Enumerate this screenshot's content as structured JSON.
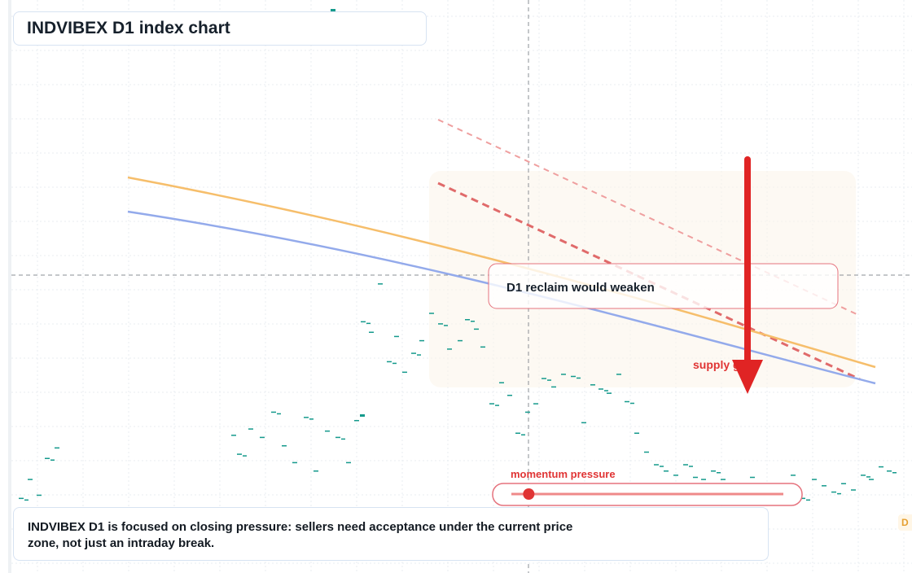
{
  "chart_data": {
    "type": "candlestick",
    "title": "INDVIBEX D1 index chart",
    "note": "INDVIBEX D1 is focused on closing pressure: sellers need acceptance under the current price zone, not just an intraday break.",
    "annotations": {
      "reclaim_label": "D1 reclaim would weaken",
      "supply_label": "supply g",
      "momentum_label": "momentum pressure",
      "axis_tag": "D",
      "momentum_level": 0.04
    },
    "colors": {
      "up": "#159a8c",
      "down": "#159a8c",
      "ma_fast": "#f6be6b",
      "ma_slow": "#93aaeb",
      "trend": "#e06666",
      "arrow": "#e02424",
      "accent_red": "#e03434"
    },
    "candles": [
      [
        26,
        22
      ],
      [
        37,
        40
      ],
      [
        48,
        25
      ],
      [
        58,
        60
      ],
      [
        70,
        70
      ],
      [
        287,
        82
      ],
      [
        294,
        64
      ],
      [
        308,
        88
      ],
      [
        322,
        80
      ],
      [
        336,
        104
      ],
      [
        349,
        72
      ],
      [
        362,
        56
      ],
      [
        376,
        99
      ],
      [
        388,
        48
      ],
      [
        402,
        86
      ],
      [
        415,
        80
      ],
      [
        428,
        56
      ],
      [
        438,
        96
      ],
      [
        446,
        190
      ],
      [
        456,
        180
      ],
      [
        467,
        226
      ],
      [
        478,
        152
      ],
      [
        487,
        176
      ],
      [
        497,
        142
      ],
      [
        508,
        160
      ],
      [
        518,
        172
      ],
      [
        530,
        198
      ],
      [
        541,
        188
      ],
      [
        552,
        164
      ],
      [
        565,
        172
      ],
      [
        574,
        192
      ],
      [
        585,
        183
      ],
      [
        593,
        166
      ],
      [
        604,
        112
      ],
      [
        616,
        132
      ],
      [
        626,
        120
      ],
      [
        636,
        84
      ],
      [
        648,
        104
      ],
      [
        658,
        112
      ],
      [
        668,
        136
      ],
      [
        680,
        128
      ],
      [
        692,
        140
      ],
      [
        704,
        138
      ],
      [
        717,
        94
      ],
      [
        728,
        130
      ],
      [
        738,
        126
      ],
      [
        748,
        122
      ],
      [
        760,
        140
      ],
      [
        770,
        114
      ],
      [
        782,
        84
      ],
      [
        794,
        66
      ],
      [
        806,
        54
      ],
      [
        818,
        48
      ],
      [
        830,
        44
      ],
      [
        842,
        54
      ],
      [
        854,
        42
      ],
      [
        864,
        40
      ],
      [
        876,
        48
      ],
      [
        888,
        40
      ],
      [
        898,
        30
      ],
      [
        910,
        24
      ],
      [
        924,
        42
      ],
      [
        938,
        30
      ],
      [
        950,
        20
      ],
      [
        962,
        32
      ],
      [
        974,
        44
      ],
      [
        986,
        22
      ],
      [
        1000,
        40
      ],
      [
        1012,
        34
      ],
      [
        1024,
        28
      ],
      [
        1036,
        36
      ],
      [
        1048,
        30
      ],
      [
        1060,
        44
      ],
      [
        1070,
        40
      ],
      [
        1082,
        52
      ],
      [
        1092,
        48
      ]
    ]
  }
}
